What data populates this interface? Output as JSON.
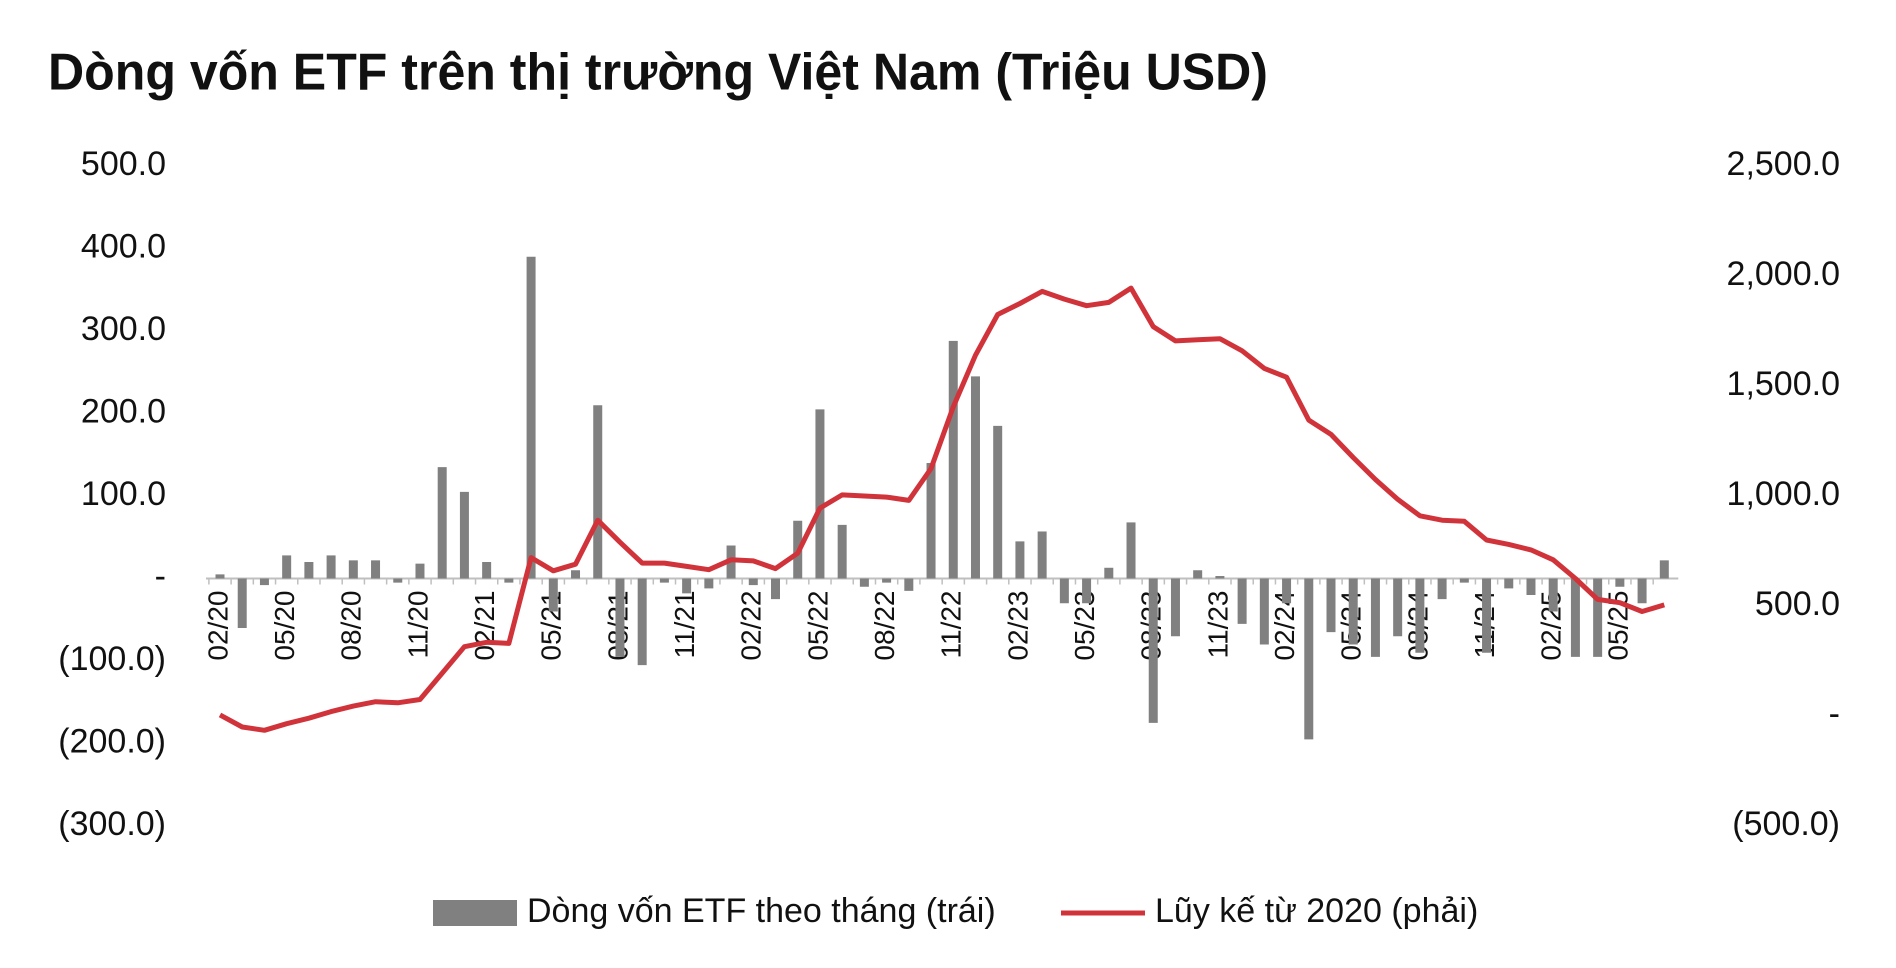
{
  "chart_data": {
    "type": "bar-line",
    "title": "Dòng vốn ETF trên thị trường Việt Nam (Triệu USD)",
    "categories": [
      "02/20",
      null,
      null,
      "05/20",
      null,
      null,
      "08/20",
      null,
      null,
      "11/20",
      null,
      null,
      "02/21",
      null,
      null,
      "05/21",
      null,
      null,
      "08/21",
      null,
      null,
      "11/21",
      null,
      null,
      "02/22",
      null,
      null,
      "05/22",
      null,
      null,
      "08/22",
      null,
      null,
      "11/22",
      null,
      null,
      "02/23",
      null,
      null,
      "05/23",
      null,
      null,
      "08/23",
      null,
      null,
      "11/23",
      null,
      null,
      "02/24",
      null,
      null,
      "05/24",
      null,
      null,
      "08/24",
      null,
      null,
      "11/24",
      null,
      null,
      "02/25",
      null,
      null,
      "05/25",
      null,
      null
    ],
    "series": [
      {
        "name": "Dòng vốn ETF theo tháng (trái)",
        "type": "bar",
        "color": "#808080",
        "axis": "y",
        "values": [
          5,
          -60,
          -8,
          28,
          20,
          28,
          22,
          22,
          -5,
          18,
          135,
          105,
          20,
          -5,
          390,
          -40,
          10,
          210,
          -95,
          -105,
          -5,
          -18,
          -12,
          40,
          -8,
          -25,
          70,
          205,
          65,
          -10,
          -5,
          -15,
          140,
          288,
          245,
          185,
          45,
          57,
          -30,
          -30,
          13,
          68,
          -175,
          -70,
          10,
          3,
          -55,
          -80,
          -30,
          -195,
          -65,
          -80,
          -95,
          -70,
          -90,
          -25,
          -5,
          -90,
          -12,
          -20,
          -40,
          -95,
          -95,
          -10,
          -30,
          22
        ]
      },
      {
        "name": "Lũy kế từ 2020 (phải)",
        "type": "line",
        "color": "#d0343a",
        "axis": "y2",
        "values": [
          5,
          -50,
          -65,
          -35,
          -10,
          20,
          45,
          65,
          60,
          75,
          195,
          315,
          335,
          330,
          720,
          660,
          690,
          890,
          790,
          695,
          695,
          680,
          665,
          710,
          705,
          670,
          740,
          945,
          1005,
          1000,
          995,
          980,
          1125,
          1405,
          1640,
          1825,
          1875,
          1930,
          1895,
          1865,
          1880,
          1945,
          1770,
          1705,
          1710,
          1715,
          1660,
          1580,
          1540,
          1345,
          1280,
          1175,
          1075,
          985,
          910,
          890,
          885,
          800,
          780,
          755,
          710,
          625,
          530,
          515,
          475,
          505
        ]
      }
    ],
    "ylim": [
      -300,
      500
    ],
    "yticks": [
      {
        "value": 500,
        "label": "500.0"
      },
      {
        "value": 400,
        "label": "400.0"
      },
      {
        "value": 300,
        "label": "300.0"
      },
      {
        "value": 200,
        "label": "200.0"
      },
      {
        "value": 100,
        "label": "100.0"
      },
      {
        "value": 0,
        "label": "-"
      },
      {
        "value": -100,
        "label": "(100.0)"
      },
      {
        "value": -200,
        "label": "(200.0)"
      },
      {
        "value": -300,
        "label": "(300.0)"
      }
    ],
    "y2lim": [
      -500,
      2500
    ],
    "y2ticks": [
      {
        "value": 2500,
        "label": "2,500.0"
      },
      {
        "value": 2000,
        "label": "2,000.0"
      },
      {
        "value": 1500,
        "label": "1,500.0"
      },
      {
        "value": 1000,
        "label": "1,000.0"
      },
      {
        "value": 500,
        "label": "500.0"
      },
      {
        "value": 0,
        "label": "-"
      },
      {
        "value": -500,
        "label": "(500.0)"
      }
    ],
    "legend": "bottom"
  }
}
